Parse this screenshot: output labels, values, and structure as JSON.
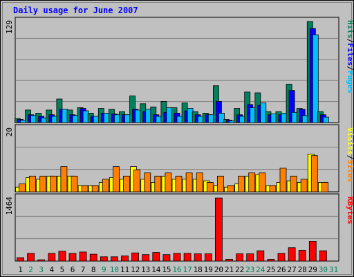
{
  "chart_data": {
    "type": "bar",
    "title": "Daily usage for June 2007",
    "categories": [
      "1",
      "2",
      "3",
      "4",
      "5",
      "6",
      "7",
      "8",
      "9",
      "10",
      "11",
      "12",
      "13",
      "14",
      "15",
      "16",
      "17",
      "18",
      "19",
      "20",
      "21",
      "22",
      "23",
      "24",
      "25",
      "26",
      "27",
      "28",
      "29",
      "30",
      "31"
    ],
    "weekend_days": [
      "2",
      "3",
      "9",
      "10",
      "16",
      "17",
      "23",
      "24",
      "30",
      "31"
    ],
    "colors": {
      "background": "#c0c0c0",
      "frame": "#e0e0e0",
      "grid": "#808080",
      "day_label": "#000000",
      "weekend_label": "#00805c",
      "hits": "#00805c",
      "files": "#0000ff",
      "pages": "#00c0ff",
      "visits": "#ffff00",
      "sites": "#ff8000",
      "kbytes": "#ff0000"
    },
    "panels": [
      {
        "id": "hits",
        "ymax_label": "129",
        "ylim": [
          0,
          129
        ],
        "legend": [
          "Pages",
          "Files",
          "Hits"
        ],
        "series": [
          {
            "name": "Hits",
            "color": "#00805c",
            "values": [
              5,
              16,
              12,
              16,
              30,
              16,
              19,
              12,
              18,
              17,
              14,
              34,
              24,
              20,
              27,
              19,
              25,
              14,
              12,
              47,
              4,
              18,
              39,
              38,
              14,
              14,
              49,
              18,
              129,
              14,
              0
            ]
          },
          {
            "name": "Files",
            "color": "#0000ff",
            "values": [
              4,
              10,
              8,
              10,
              17,
              10,
              18,
              8,
              12,
              11,
              10,
              17,
              14,
              10,
              13,
              12,
              15,
              10,
              10,
              27,
              3,
              10,
              23,
              22,
              10,
              10,
              41,
              17,
              120,
              10,
              0
            ]
          },
          {
            "name": "Pages",
            "color": "#00c0ff",
            "values": [
              3,
              9,
              6,
              8,
              17,
              9,
              15,
              8,
              12,
              10,
              10,
              16,
              17,
              8,
              19,
              8,
              18,
              8,
              10,
              12,
              2,
              8,
              19,
              25,
              11,
              12,
              13,
              9,
              112,
              7,
              0
            ]
          }
        ]
      },
      {
        "id": "visits",
        "ymax_label": "20",
        "ylim": [
          0,
          20
        ],
        "legend": [
          "Sites",
          "Visits"
        ],
        "series": [
          {
            "name": "Visits",
            "color": "#ffff00",
            "values": [
              1.5,
              4.5,
              4,
              5,
              5,
              5,
              2,
              2,
              3,
              4.5,
              4,
              8,
              4,
              3,
              5,
              4,
              4,
              4,
              3.5,
              2,
              1.5,
              2.5,
              5,
              5.5,
              2,
              3,
              3.5,
              3,
              12,
              3,
              0
            ]
          },
          {
            "name": "Sites",
            "color": "#ff8000",
            "values": [
              2.5,
              5,
              5,
              5,
              8,
              5,
              2,
              2,
              4,
              8,
              5,
              7,
              6,
              5,
              6,
              5,
              6,
              6,
              3,
              5,
              2,
              5,
              6,
              6,
              2,
              7.5,
              5,
              4,
              11.5,
              3,
              0
            ]
          }
        ]
      },
      {
        "id": "kbytes",
        "ymax_label": "1464",
        "ylim": [
          0,
          1464
        ],
        "legend": [
          "KBytes"
        ],
        "series": [
          {
            "name": "KBytes",
            "color": "#ff0000",
            "values": [
              80,
              180,
              30,
              180,
              230,
              180,
              210,
              160,
              100,
              100,
              120,
              190,
              150,
              200,
              150,
              180,
              180,
              170,
              170,
              1464,
              40,
              170,
              170,
              240,
              40,
              180,
              310,
              250,
              460,
              240,
              0
            ]
          }
        ]
      }
    ]
  }
}
